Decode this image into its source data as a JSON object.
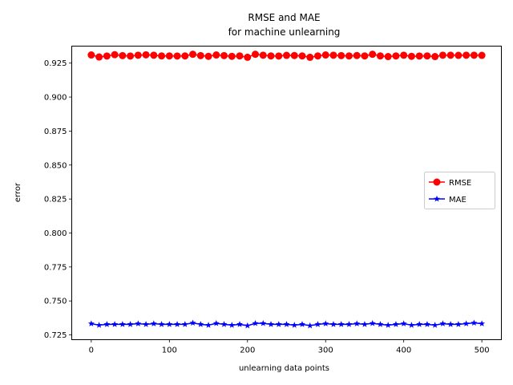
{
  "chart_data": {
    "type": "line",
    "title_line1": "RMSE and MAE",
    "title_line2": "for machine unlearning",
    "xlabel": "unlearning data points",
    "ylabel": "error",
    "xlim": [
      -25,
      525
    ],
    "ylim": [
      0.7215,
      0.9375
    ],
    "xticks": [
      0,
      100,
      200,
      300,
      400,
      500
    ],
    "yticks": [
      0.725,
      0.75,
      0.775,
      0.8,
      0.825,
      0.85,
      0.875,
      0.9,
      0.925
    ],
    "ytick_labels": [
      "0.725",
      "0.750",
      "0.775",
      "0.800",
      "0.825",
      "0.850",
      "0.875",
      "0.900",
      "0.925"
    ],
    "legend_position": "center-right",
    "x": [
      0,
      10,
      20,
      30,
      40,
      50,
      60,
      70,
      80,
      90,
      100,
      110,
      120,
      130,
      140,
      150,
      160,
      170,
      180,
      190,
      200,
      210,
      220,
      230,
      240,
      250,
      260,
      270,
      280,
      290,
      300,
      310,
      320,
      330,
      340,
      350,
      360,
      370,
      380,
      390,
      400,
      410,
      420,
      430,
      440,
      450,
      460,
      470,
      480,
      490,
      500
    ],
    "series": [
      {
        "name": "RMSE",
        "color": "#ff0000",
        "marker": "circle",
        "values": [
          0.931,
          0.9295,
          0.9302,
          0.9312,
          0.9305,
          0.9302,
          0.9308,
          0.9311,
          0.9308,
          0.9303,
          0.9303,
          0.9302,
          0.9303,
          0.9315,
          0.9305,
          0.93,
          0.931,
          0.9305,
          0.93,
          0.9303,
          0.9293,
          0.9315,
          0.9308,
          0.9303,
          0.9302,
          0.9307,
          0.9306,
          0.9303,
          0.9293,
          0.9303,
          0.931,
          0.9308,
          0.9305,
          0.9303,
          0.9306,
          0.9303,
          0.9315,
          0.9303,
          0.9298,
          0.9303,
          0.9308,
          0.93,
          0.9302,
          0.9303,
          0.9298,
          0.9308,
          0.9308,
          0.9307,
          0.9308,
          0.9308,
          0.9307
        ]
      },
      {
        "name": "MAE",
        "color": "#0000ff",
        "marker": "star",
        "values": [
          0.7333,
          0.7322,
          0.7328,
          0.7328,
          0.7328,
          0.7328,
          0.7333,
          0.7328,
          0.7333,
          0.7328,
          0.7328,
          0.7328,
          0.7328,
          0.7338,
          0.7328,
          0.7322,
          0.7335,
          0.7328,
          0.7322,
          0.7328,
          0.7318,
          0.7335,
          0.7335,
          0.7328,
          0.7328,
          0.7328,
          0.7322,
          0.7328,
          0.7318,
          0.7328,
          0.7333,
          0.7328,
          0.7328,
          0.7328,
          0.7333,
          0.7328,
          0.7335,
          0.7328,
          0.7322,
          0.7328,
          0.7333,
          0.7322,
          0.7328,
          0.7328,
          0.7322,
          0.7333,
          0.7328,
          0.7328,
          0.7333,
          0.7338,
          0.7333
        ]
      }
    ]
  }
}
